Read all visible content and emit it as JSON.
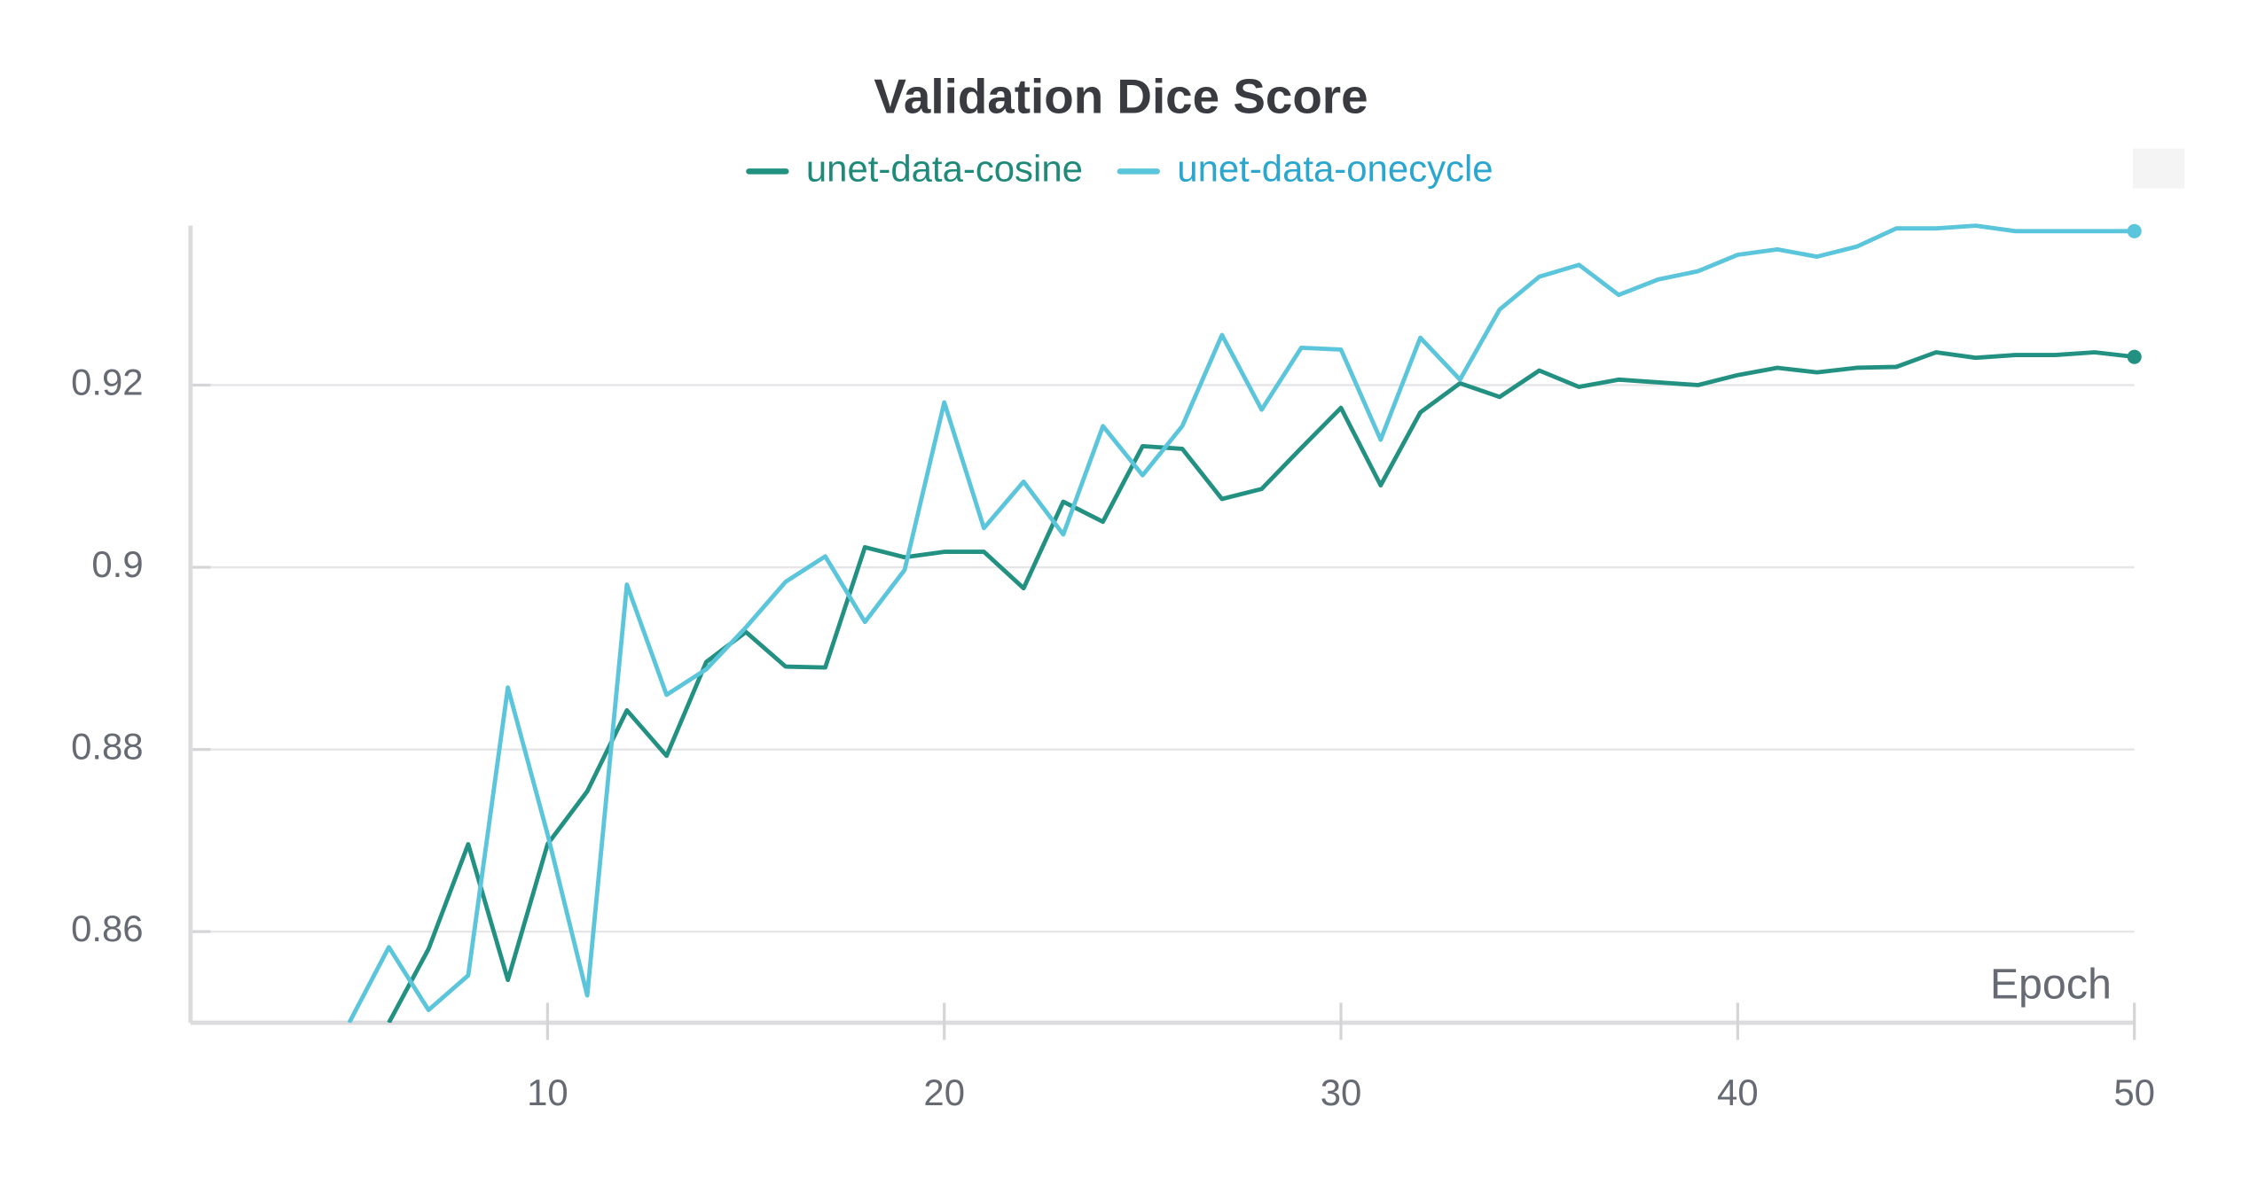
{
  "chart_data": {
    "type": "line",
    "title": "Validation Dice Score",
    "x_label": "Epoch",
    "xlim": [
      1,
      50
    ],
    "xticks": [
      10,
      20,
      30,
      40,
      50
    ],
    "ylim": [
      0.85,
      0.9375
    ],
    "yticks": [
      0.86,
      0.88,
      0.9,
      0.92
    ],
    "grid": true,
    "series": [
      {
        "name": "unet-data-cosine",
        "color": "#229181",
        "legend_color": "#1f8a7a",
        "x": [
          6,
          7,
          8,
          9,
          10,
          11,
          12,
          13,
          14,
          15,
          16,
          17,
          18,
          19,
          20,
          21,
          22,
          23,
          24,
          25,
          26,
          27,
          28,
          29,
          30,
          31,
          32,
          33,
          34,
          35,
          36,
          37,
          38,
          39,
          40,
          41,
          42,
          43,
          44,
          45,
          46,
          47,
          48,
          49,
          50
        ],
        "values": [
          0.85,
          0.8581,
          0.8696,
          0.8547,
          0.8696,
          0.8754,
          0.8843,
          0.8793,
          0.8896,
          0.8929,
          0.8891,
          0.889,
          0.9022,
          0.9011,
          0.9017,
          0.9017,
          0.8977,
          0.9072,
          0.905,
          0.9133,
          0.913,
          0.9075,
          0.9086,
          0.9131,
          0.9175,
          0.909,
          0.917,
          0.9202,
          0.9187,
          0.9216,
          0.9198,
          0.9206,
          0.9203,
          0.92,
          0.9211,
          0.9219,
          0.9214,
          0.9219,
          0.922,
          0.9236,
          0.923,
          0.9233,
          0.9233,
          0.9236,
          0.9231
        ]
      },
      {
        "name": "unet-data-onecycle",
        "color": "#5bc5db",
        "legend_color": "#2aa6cf",
        "x": [
          5,
          6,
          7,
          8,
          9,
          10,
          11,
          12,
          13,
          14,
          15,
          16,
          17,
          18,
          19,
          20,
          21,
          22,
          23,
          24,
          25,
          26,
          27,
          28,
          29,
          30,
          31,
          32,
          33,
          34,
          35,
          36,
          37,
          38,
          39,
          40,
          41,
          42,
          43,
          44,
          45,
          46,
          47,
          48,
          49,
          50
        ],
        "values": [
          0.85,
          0.8583,
          0.8514,
          0.8552,
          0.8868,
          0.8707,
          0.853,
          0.8981,
          0.886,
          0.8888,
          0.8934,
          0.8984,
          0.9012,
          0.894,
          0.8997,
          0.9181,
          0.9043,
          0.9094,
          0.9036,
          0.9155,
          0.9101,
          0.9155,
          0.9255,
          0.9173,
          0.9241,
          0.9239,
          0.914,
          0.9252,
          0.9206,
          0.9283,
          0.9319,
          0.9332,
          0.9299,
          0.9316,
          0.9325,
          0.9343,
          0.9349,
          0.9341,
          0.9352,
          0.9372,
          0.9372,
          0.9375,
          0.9369,
          0.9369,
          0.9369,
          0.9369
        ]
      }
    ]
  }
}
